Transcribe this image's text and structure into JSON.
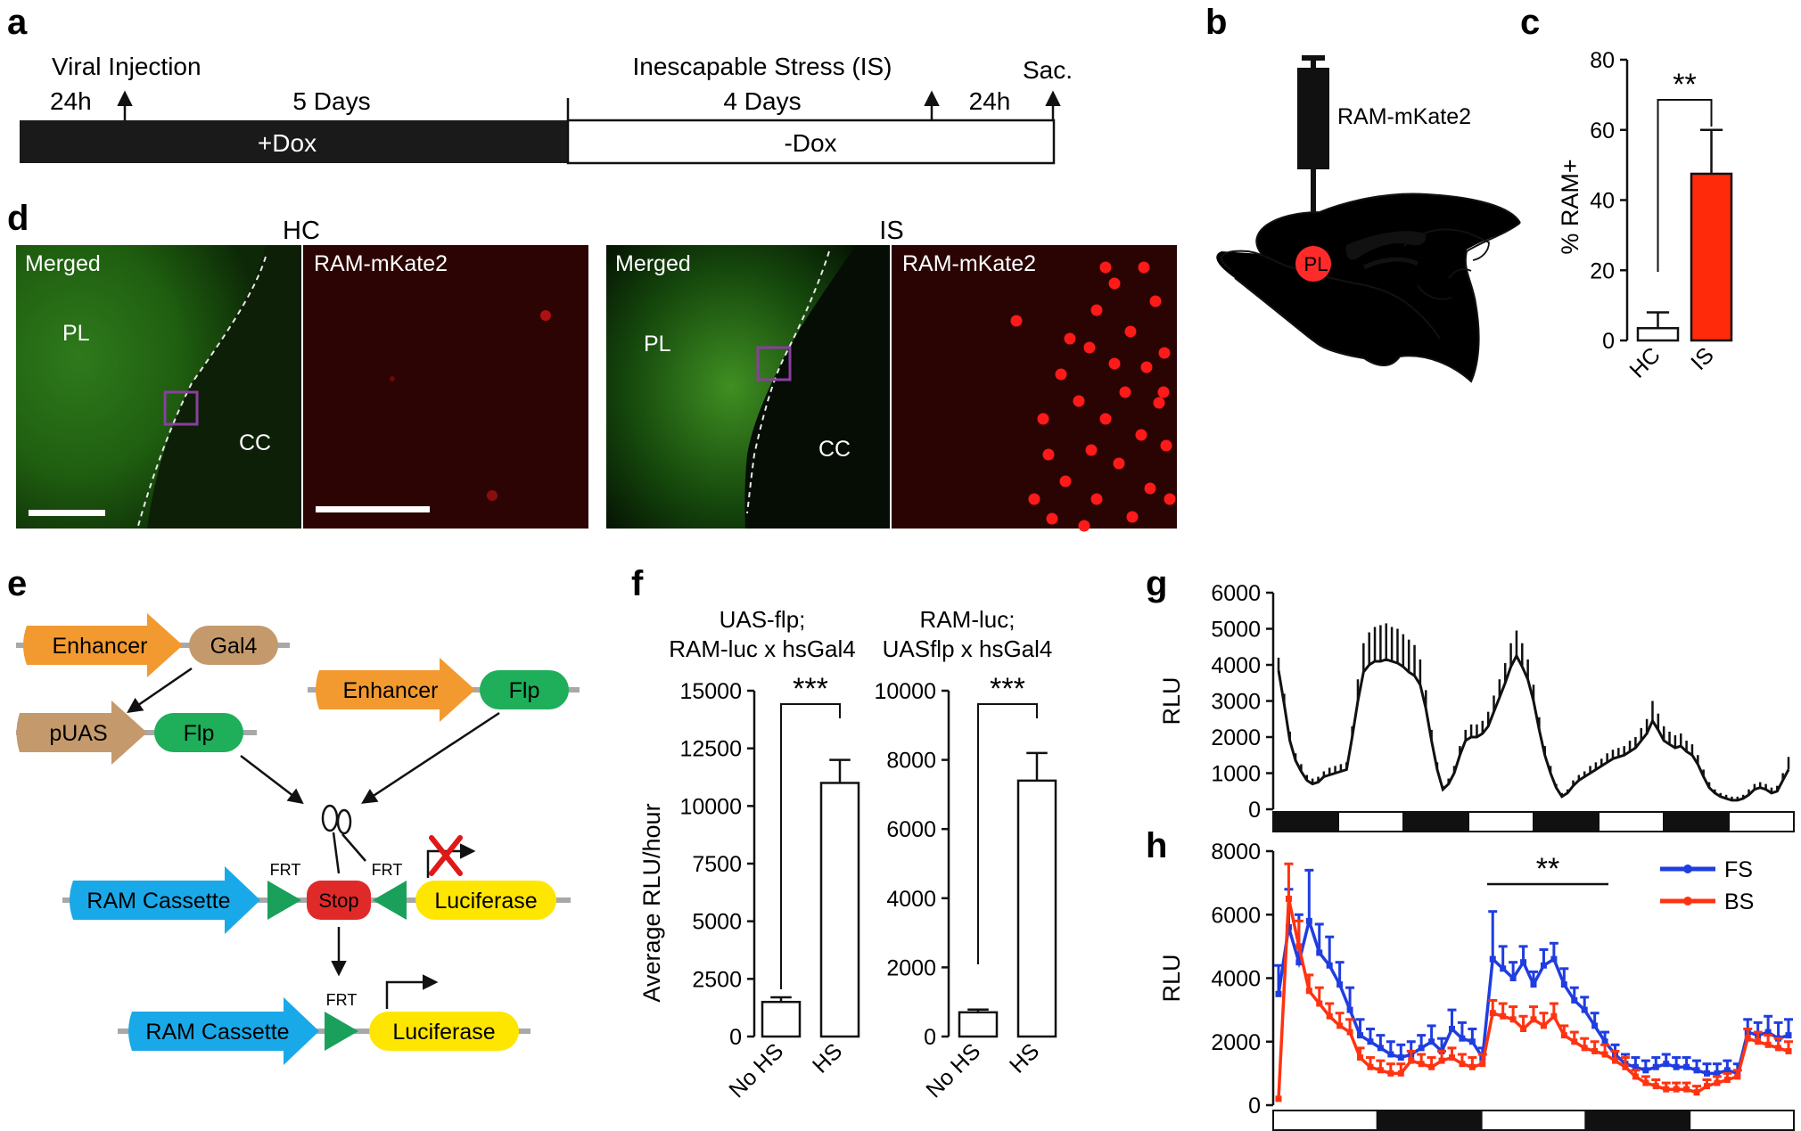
{
  "panel_letters": {
    "a": "a",
    "b": "b",
    "c": "c",
    "d": "d",
    "e": "e",
    "f": "f",
    "g": "g",
    "h": "h"
  },
  "timeline": {
    "viral_injection": "Viral Injection",
    "t24h_a": "24h",
    "five_days": "5 Days",
    "stress": "Inescapable Stress (IS)",
    "four_days": "4 Days",
    "t24h_b": "24h",
    "sac": "Sac.",
    "plus_dox": "+Dox",
    "minus_dox": "-Dox"
  },
  "panel_b": {
    "construct": "RAM-mKate2",
    "region": "PL"
  },
  "panel_d": {
    "hc_title": "HC",
    "is_title": "IS",
    "merged": "Merged",
    "mkate": "RAM-mKate2",
    "pl": "PL",
    "cc": "CC"
  },
  "panel_e": {
    "enhancer": "Enhancer",
    "gal4": "Gal4",
    "puas": "pUAS",
    "flp": "Flp",
    "ram_cassette": "RAM Cassette",
    "frt": "FRT",
    "stop": "Stop",
    "luciferase": "Luciferase"
  },
  "chart_data": [
    {
      "id": "c",
      "type": "bar",
      "categories": [
        "HC",
        "IS"
      ],
      "values": [
        3.5,
        47.5
      ],
      "errors": [
        4.5,
        12.5
      ],
      "bar_colors": [
        "#ffffff",
        "#ff2a0a"
      ],
      "ylabel": "% RAM+",
      "ylim": [
        0,
        80
      ],
      "yticks": [
        "0",
        "20",
        "40",
        "60",
        "80"
      ],
      "significance": "**"
    },
    {
      "id": "f1",
      "type": "bar",
      "title": [
        "UAS-flp;",
        "RAM-luc x hsGal4"
      ],
      "categories": [
        "No HS",
        "HS"
      ],
      "values": [
        1500,
        11000
      ],
      "errors": [
        200,
        1000
      ],
      "ylabel": "Average RLU/hour",
      "ylim": [
        0,
        15000
      ],
      "yticks": [
        "0",
        "2500",
        "5000",
        "7500",
        "10000",
        "12500",
        "15000"
      ],
      "significance": "***"
    },
    {
      "id": "f2",
      "type": "bar",
      "title": [
        "RAM-luc;",
        "UASflp x hsGal4"
      ],
      "categories": [
        "No HS",
        "HS"
      ],
      "values": [
        700,
        7400
      ],
      "errors": [
        80,
        800
      ],
      "ylim": [
        0,
        10000
      ],
      "yticks": [
        "0",
        "2000",
        "4000",
        "6000",
        "8000",
        "10000"
      ],
      "significance": "***"
    },
    {
      "id": "g",
      "type": "line",
      "ylabel": "RLU",
      "ylim": [
        0,
        6000
      ],
      "yticks": [
        "0",
        "1000",
        "2000",
        "3000",
        "4000",
        "5000",
        "6000"
      ],
      "light_bar": [
        "dark",
        "light",
        "dark",
        "light",
        "dark",
        "light",
        "dark",
        "light"
      ],
      "series": [
        {
          "color": "#111111",
          "values": [
            3850,
            2900,
            1900,
            1350,
            1050,
            800,
            700,
            750,
            900,
            950,
            1000,
            1050,
            1100,
            2000,
            3000,
            3800,
            4000,
            4100,
            4100,
            4150,
            4100,
            4050,
            3950,
            3800,
            3700,
            3450,
            2800,
            1900,
            1100,
            550,
            700,
            1000,
            1500,
            1900,
            2000,
            2000,
            2100,
            2300,
            2700,
            3100,
            3500,
            3950,
            4250,
            3950,
            3600,
            3000,
            2200,
            1500,
            1000,
            600,
            350,
            450,
            650,
            800,
            900,
            1000,
            1100,
            1200,
            1300,
            1400,
            1450,
            1500,
            1600,
            1700,
            1900,
            2100,
            2450,
            2200,
            1900,
            1800,
            1700,
            1750,
            1600,
            1500,
            1250,
            900,
            600,
            450,
            350,
            300,
            250,
            250,
            300,
            400,
            550,
            600,
            550,
            450,
            500,
            800,
            1100
          ],
          "errors": [
            350,
            300,
            250,
            200,
            200,
            150,
            150,
            150,
            150,
            200,
            200,
            200,
            200,
            300,
            600,
            800,
            900,
            950,
            1000,
            1000,
            950,
            950,
            900,
            900,
            850,
            700,
            500,
            300,
            200,
            100,
            150,
            200,
            250,
            300,
            350,
            350,
            350,
            400,
            450,
            500,
            550,
            650,
            700,
            650,
            550,
            450,
            350,
            250,
            200,
            100,
            100,
            100,
            150,
            150,
            150,
            200,
            200,
            200,
            250,
            250,
            250,
            250,
            300,
            300,
            350,
            400,
            550,
            450,
            400,
            350,
            350,
            350,
            300,
            300,
            250,
            200,
            150,
            100,
            100,
            100,
            100,
            100,
            100,
            150,
            150,
            150,
            150,
            150,
            150,
            200,
            350
          ]
        }
      ]
    },
    {
      "id": "h",
      "type": "line",
      "ylabel": "RLU",
      "ylim": [
        0,
        8000
      ],
      "yticks": [
        "0",
        "2000",
        "4000",
        "6000",
        "8000"
      ],
      "legend": "top-right",
      "significance": "**",
      "light_bar": [
        "light",
        "dark",
        "light",
        "dark",
        "light"
      ],
      "series": [
        {
          "name": "FS",
          "color": "#1f3de0",
          "values": [
            3500,
            5600,
            4500,
            5800,
            4800,
            4400,
            3800,
            3000,
            2200,
            2000,
            1800,
            1600,
            1500,
            1600,
            1800,
            2000,
            1700,
            2400,
            2100,
            2000,
            1500,
            4600,
            4300,
            4000,
            4500,
            3800,
            4400,
            4600,
            3800,
            3300,
            3000,
            2500,
            2000,
            1600,
            1300,
            1200,
            1100,
            1200,
            1300,
            1200,
            1200,
            1100,
            1000,
            1000,
            1100,
            1000,
            2300,
            2200,
            2300,
            2100,
            2200
          ],
          "errors": [
            900,
            1200,
            1500,
            1600,
            900,
            900,
            700,
            700,
            500,
            400,
            400,
            400,
            400,
            400,
            400,
            500,
            400,
            600,
            500,
            400,
            300,
            1500,
            700,
            500,
            500,
            400,
            500,
            500,
            500,
            400,
            400,
            400,
            300,
            300,
            300,
            300,
            300,
            300,
            300,
            300,
            300,
            300,
            300,
            300,
            300,
            300,
            400,
            400,
            500,
            500,
            500
          ]
        },
        {
          "name": "BS",
          "color": "#ff3311",
          "values": [
            200,
            6500,
            5000,
            3600,
            3200,
            2800,
            2500,
            2300,
            1500,
            1200,
            1100,
            1000,
            1000,
            1400,
            1300,
            1200,
            1400,
            1500,
            1300,
            1200,
            1300,
            2900,
            2800,
            2700,
            2400,
            2700,
            2500,
            2800,
            2200,
            2000,
            1800,
            1700,
            1600,
            1400,
            1200,
            900,
            700,
            600,
            500,
            500,
            500,
            400,
            600,
            700,
            800,
            900,
            2100,
            2000,
            1900,
            1800,
            1700
          ],
          "errors": [
            0,
            1100,
            800,
            500,
            500,
            400,
            400,
            400,
            300,
            300,
            300,
            300,
            300,
            300,
            300,
            300,
            300,
            300,
            300,
            300,
            300,
            400,
            400,
            400,
            400,
            400,
            400,
            400,
            300,
            300,
            300,
            300,
            300,
            300,
            300,
            200,
            200,
            200,
            200,
            200,
            200,
            200,
            200,
            200,
            200,
            200,
            300,
            300,
            300,
            300,
            300
          ]
        }
      ]
    }
  ]
}
